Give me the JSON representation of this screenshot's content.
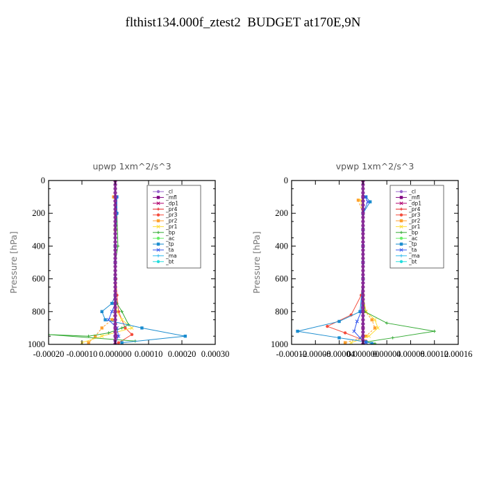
{
  "title": "flthist134.000f_ztest2  BUDGET at170E,9N",
  "chart_data": [
    {
      "type": "line",
      "title": "upwp   1xm^2/s^3",
      "ylabel": "Pressure [hPa]",
      "xlim": [
        -0.0002,
        0.0003
      ],
      "ylim": [
        1000,
        0
      ],
      "xticks": [
        -0.0002,
        -0.0001,
        0.0,
        0.0001,
        0.0002,
        0.0003
      ],
      "xtick_labels": [
        "-0.00020",
        "-0.00010",
        "0.000000",
        "0.00010",
        "0.00020",
        "0.00030"
      ],
      "yticks": [
        0,
        200,
        400,
        600,
        800,
        1000
      ],
      "ytick_labels": [
        "0",
        "200",
        "400",
        "600",
        "800",
        "1000"
      ],
      "legend_position": "top-right",
      "series": [
        {
          "name": "_cl",
          "color": "#9966cc",
          "x": [
            0,
            0,
            0,
            0,
            0,
            0,
            0,
            0,
            0,
            0,
            0,
            0
          ],
          "y": [
            0,
            100,
            200,
            300,
            400,
            500,
            600,
            700,
            800,
            900,
            950,
            1000
          ]
        },
        {
          "name": "_mfl",
          "color": "#800080",
          "x": [
            0,
            0,
            0,
            0,
            0,
            0,
            0,
            0,
            0,
            0,
            0,
            0
          ],
          "y": [
            0,
            100,
            200,
            300,
            400,
            500,
            600,
            700,
            800,
            900,
            950,
            1000
          ]
        },
        {
          "name": "_dp1",
          "color": "#b0006e",
          "x": [
            0,
            0,
            0,
            0,
            0,
            0,
            0,
            0,
            0,
            0,
            5e-06,
            0
          ],
          "y": [
            0,
            100,
            200,
            300,
            400,
            500,
            600,
            700,
            800,
            900,
            950,
            1000
          ]
        },
        {
          "name": "_pr4",
          "color": "#e52020",
          "x": [
            0,
            0,
            0,
            0,
            0,
            0,
            0,
            0,
            0,
            0,
            0,
            0
          ],
          "y": [
            0,
            100,
            200,
            300,
            400,
            500,
            600,
            700,
            800,
            900,
            950,
            1000
          ]
        },
        {
          "name": "_pr3",
          "color": "#f44c3c",
          "x": [
            0,
            0,
            0,
            0,
            0,
            0,
            2e-06,
            5e-06,
            1e-05,
            3e-05,
            5e-05,
            1e-05
          ],
          "y": [
            0,
            100,
            200,
            300,
            400,
            500,
            600,
            700,
            800,
            900,
            940,
            990
          ]
        },
        {
          "name": "_pr2",
          "color": "#ffa030",
          "x": [
            -5e-06,
            0,
            0,
            0,
            0,
            0,
            0,
            0,
            -1e-05,
            -4e-05,
            -6e-05,
            -8e-05
          ],
          "y": [
            100,
            200,
            300,
            400,
            500,
            600,
            700,
            800,
            850,
            900,
            950,
            990
          ]
        },
        {
          "name": "_pr1",
          "color": "#ffdd33",
          "x": [
            0,
            0,
            0,
            0,
            0,
            0,
            0,
            5e-06,
            2e-05,
            5e-05,
            -4e-05,
            -0.0001
          ],
          "y": [
            100,
            200,
            300,
            400,
            500,
            600,
            700,
            800,
            850,
            900,
            950,
            990
          ]
        },
        {
          "name": "_bp",
          "color": "#33aa33",
          "x": [
            4e-06,
            5e-06,
            8e-06,
            0,
            0,
            0,
            5e-06,
            2e-05,
            4e-05,
            2e-05,
            -2e-05,
            -8e-05,
            -0.0002,
            6e-05
          ],
          "y": [
            100,
            200,
            400,
            500,
            600,
            700,
            750,
            800,
            880,
            900,
            930,
            950,
            940,
            980
          ]
        },
        {
          "name": "_ac",
          "color": "#66ee66",
          "x": [
            0,
            0,
            0,
            0,
            0,
            0,
            0,
            0,
            0,
            0,
            0,
            0
          ],
          "y": [
            0,
            100,
            200,
            300,
            400,
            500,
            600,
            700,
            800,
            900,
            950,
            1000
          ]
        },
        {
          "name": "_tp",
          "color": "#1a8ccf",
          "x": [
            5e-06,
            5e-06,
            0,
            0,
            0,
            0,
            -1e-05,
            -4e-05,
            -3e-05,
            8e-05,
            0.00021,
            2e-05
          ],
          "y": [
            100,
            200,
            400,
            500,
            600,
            700,
            750,
            800,
            850,
            900,
            950,
            990
          ]
        },
        {
          "name": "_ta",
          "color": "#3355ee",
          "x": [
            4e-06,
            3e-06,
            0,
            0,
            0,
            0,
            0,
            -1e-05,
            -2e-05,
            5e-06,
            1e-05,
            0
          ],
          "y": [
            100,
            200,
            400,
            500,
            600,
            700,
            750,
            800,
            850,
            900,
            950,
            990
          ]
        },
        {
          "name": "_ma",
          "color": "#33bbee",
          "x": [
            0,
            0,
            0,
            0,
            0,
            0,
            0,
            0,
            0,
            0,
            0,
            0
          ],
          "y": [
            0,
            100,
            200,
            300,
            400,
            500,
            600,
            700,
            800,
            900,
            950,
            1000
          ]
        },
        {
          "name": "_bt",
          "color": "#22dddd",
          "x": [
            0,
            0,
            0,
            0,
            0,
            0,
            0,
            0,
            0,
            0,
            0,
            0
          ],
          "y": [
            0,
            100,
            200,
            300,
            400,
            500,
            600,
            700,
            800,
            900,
            950,
            1000
          ]
        }
      ]
    },
    {
      "type": "line",
      "title": "vpwp   1xm^2/s^3",
      "ylabel": "Pressure [hPa]",
      "xlim": [
        -0.00012,
        0.00016
      ],
      "ylim": [
        1000,
        0
      ],
      "xticks": [
        -0.00012,
        -8e-05,
        -4e-05,
        0.0,
        4e-05,
        8e-05,
        0.00012,
        0.00016
      ],
      "xtick_labels": [
        "-0.00012",
        "-0.00008",
        "-0.00004",
        "0.000000",
        "0.00004",
        "0.00008",
        "0.00012",
        "0.00016"
      ],
      "yticks": [
        0,
        200,
        400,
        600,
        800,
        1000
      ],
      "ytick_labels": [
        "0",
        "200",
        "400",
        "600",
        "800",
        "1000"
      ],
      "legend_position": "top-right",
      "series": [
        {
          "name": "_cl",
          "color": "#9966cc",
          "x": [
            0,
            0,
            0,
            0,
            0,
            0,
            0,
            0,
            0,
            0,
            0,
            0
          ],
          "y": [
            0,
            100,
            200,
            300,
            400,
            500,
            600,
            700,
            800,
            900,
            950,
            1000
          ]
        },
        {
          "name": "_mfl",
          "color": "#800080",
          "x": [
            0,
            0,
            0,
            0,
            0,
            0,
            0,
            0,
            0,
            0,
            0,
            0
          ],
          "y": [
            0,
            100,
            200,
            300,
            400,
            500,
            600,
            700,
            800,
            900,
            950,
            1000
          ]
        },
        {
          "name": "_dp1",
          "color": "#b0006e",
          "x": [
            0,
            0,
            0,
            0,
            0,
            0,
            0,
            0,
            0,
            0,
            0,
            0
          ],
          "y": [
            0,
            100,
            200,
            300,
            400,
            500,
            600,
            700,
            800,
            900,
            950,
            1000
          ]
        },
        {
          "name": "_pr4",
          "color": "#e52020",
          "x": [
            0,
            0,
            0,
            0,
            0,
            0,
            0,
            0,
            0,
            0,
            0,
            0
          ],
          "y": [
            0,
            100,
            200,
            300,
            400,
            500,
            600,
            700,
            800,
            900,
            950,
            1000
          ]
        },
        {
          "name": "_pr3",
          "color": "#f44c3c",
          "x": [
            0,
            0,
            0,
            0,
            0,
            0,
            0,
            -3e-06,
            -2e-05,
            -6e-05,
            -3e-05,
            5e-06
          ],
          "y": [
            0,
            100,
            200,
            300,
            400,
            500,
            600,
            700,
            820,
            890,
            930,
            980
          ]
        },
        {
          "name": "_pr2",
          "color": "#ffa030",
          "x": [
            -8e-06,
            0,
            0,
            0,
            0,
            0,
            0,
            4e-06,
            1.5e-05,
            2e-05,
            5e-06,
            -3e-05
          ],
          "y": [
            120,
            200,
            300,
            400,
            500,
            600,
            700,
            800,
            850,
            900,
            950,
            990
          ]
        },
        {
          "name": "_pr1",
          "color": "#ffdd33",
          "x": [
            -4e-06,
            0,
            0,
            0,
            0,
            0,
            0,
            5e-06,
            2e-05,
            2.5e-05,
            1e-05,
            -2e-05
          ],
          "y": [
            120,
            200,
            300,
            400,
            500,
            600,
            700,
            800,
            850,
            900,
            950,
            990
          ]
        },
        {
          "name": "_bp",
          "color": "#33aa33",
          "x": [
            0,
            0,
            0,
            0,
            0,
            0,
            0,
            3e-06,
            4e-05,
            0.00012,
            5e-05,
            5e-06,
            2e-05
          ],
          "y": [
            100,
            200,
            300,
            400,
            500,
            600,
            700,
            800,
            870,
            920,
            960,
            985,
            995
          ]
        },
        {
          "name": "_ac",
          "color": "#66ee66",
          "x": [
            0,
            0,
            0,
            0,
            0,
            0,
            0,
            0,
            0,
            0,
            0,
            0
          ],
          "y": [
            0,
            100,
            200,
            300,
            400,
            500,
            600,
            700,
            800,
            900,
            950,
            1000
          ]
        },
        {
          "name": "_tp",
          "color": "#1a8ccf",
          "x": [
            5e-06,
            1.2e-05,
            0,
            0,
            0,
            0,
            0,
            -5e-06,
            -4e-05,
            -0.00011,
            -4e-05,
            5e-06,
            1.5e-05
          ],
          "y": [
            100,
            130,
            200,
            300,
            400,
            500,
            600,
            800,
            860,
            920,
            960,
            985,
            995
          ]
        },
        {
          "name": "_ta",
          "color": "#3355ee",
          "x": [
            4e-06,
            8e-06,
            0,
            0,
            0,
            0,
            0,
            -3e-06,
            -1e-05,
            -1.5e-05,
            -5e-06,
            5e-06
          ],
          "y": [
            100,
            130,
            200,
            300,
            400,
            500,
            600,
            800,
            860,
            920,
            960,
            990
          ]
        },
        {
          "name": "_ma",
          "color": "#33bbee",
          "x": [
            0,
            0,
            0,
            0,
            0,
            0,
            0,
            0,
            0,
            0,
            0,
            0
          ],
          "y": [
            0,
            100,
            200,
            300,
            400,
            500,
            600,
            700,
            800,
            900,
            950,
            1000
          ]
        },
        {
          "name": "_bt",
          "color": "#22dddd",
          "x": [
            0,
            0,
            0,
            0,
            0,
            0,
            0,
            0,
            0,
            0,
            0,
            0
          ],
          "y": [
            0,
            100,
            200,
            300,
            400,
            500,
            600,
            700,
            800,
            900,
            950,
            1000
          ]
        }
      ]
    }
  ]
}
